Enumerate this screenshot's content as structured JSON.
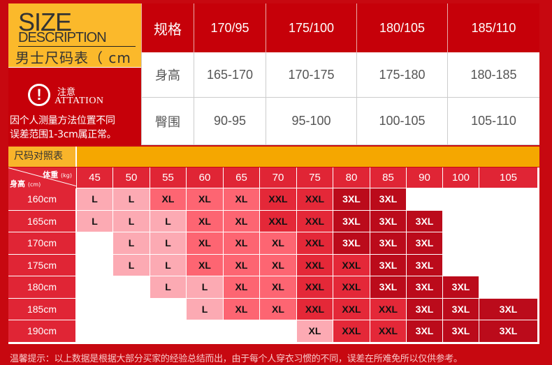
{
  "brand": {
    "size": "SIZE",
    "description": "DESCRIPTION",
    "chart_title": "男士尺码表（ cm ）"
  },
  "notice": {
    "icon": "exclamation-circle-icon",
    "title": "注意",
    "subtitle": "ATTATION",
    "lines": [
      "因个人测量方法位置不同",
      "误差范围1-3cm属正常。"
    ]
  },
  "spec_table": {
    "header": [
      "规格",
      "170/95",
      "175/100",
      "180/105",
      "185/110"
    ],
    "rows": [
      [
        "身高",
        "165-170",
        "170-175",
        "175-180",
        "180-185"
      ],
      [
        "臀围",
        "90-95",
        "95-100",
        "100-105",
        "105-110"
      ]
    ]
  },
  "chart_band": {
    "label": "尺码对照表"
  },
  "size_chart": {
    "corner": {
      "weight": "体重",
      "weight_unit": "(kg)",
      "height": "身高",
      "height_unit": "(cm)"
    },
    "weights": [
      "45",
      "50",
      "55",
      "60",
      "65",
      "70",
      "75",
      "80",
      "85",
      "90",
      "100",
      "105"
    ],
    "rows": [
      {
        "height": "160cm",
        "cells": [
          "L",
          "L",
          "XL",
          "XL",
          "XL",
          "XXL",
          "XXL",
          "3XL",
          "3XL",
          "",
          "",
          ""
        ]
      },
      {
        "height": "165cm",
        "cells": [
          "L",
          "L",
          "L",
          "XL",
          "XL",
          "XXL",
          "XXL",
          "3XL",
          "3XL",
          "3XL",
          "",
          ""
        ]
      },
      {
        "height": "170cm",
        "cells": [
          "",
          "L",
          "L",
          "XL",
          "XL",
          "XL",
          "XXL",
          "3XL",
          "3XL",
          "3XL",
          "",
          ""
        ]
      },
      {
        "height": "175cm",
        "cells": [
          "",
          "L",
          "L",
          "XL",
          "XL",
          "XL",
          "XXL",
          "XXL",
          "3XL",
          "3XL",
          "",
          ""
        ]
      },
      {
        "height": "180cm",
        "cells": [
          "",
          "",
          "L",
          "L",
          "XL",
          "XL",
          "XXL",
          "XXL",
          "3XL",
          "3XL",
          "3XL",
          ""
        ]
      },
      {
        "height": "185cm",
        "cells": [
          "",
          "",
          "",
          "L",
          "XL",
          "XL",
          "XXL",
          "XXL",
          "XXL",
          "3XL",
          "3XL",
          "3XL"
        ]
      },
      {
        "height": "190cm",
        "cells": [
          "",
          "",
          "",
          "",
          "",
          "",
          "XL",
          "XXL",
          "XXL",
          "3XL",
          "3XL",
          "3XL"
        ]
      }
    ],
    "light_cells": [
      [
        6,
        6
      ]
    ],
    "colors": {
      "L": "#fcaab3",
      "XL": "#fd6572",
      "XXL": "#e42838",
      "3XL": "#bb0b1b",
      "light": "#fcaab3"
    }
  },
  "footer": "温馨提示：以上数据是根据大部分买家的经验总结而出，由于每个人穿衣习惯的不同，误差在所难免所以仅供参考。"
}
